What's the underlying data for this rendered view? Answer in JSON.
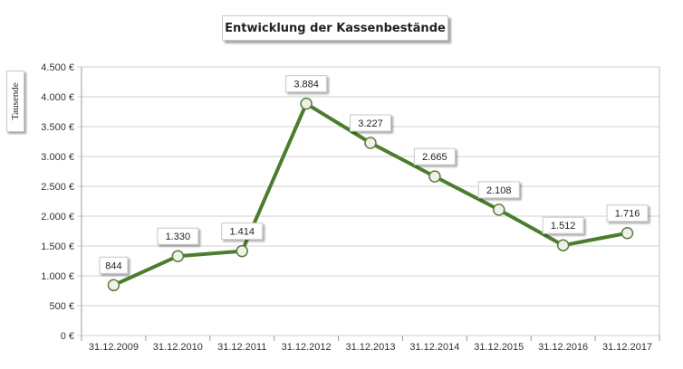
{
  "chart_data": {
    "type": "line",
    "title": "Entwicklung der Kassenbestände",
    "ylabel": "Tausende",
    "xlabel": "",
    "categories": [
      "31.12.2009",
      "31.12.2010",
      "31.12.2011",
      "31.12.2012",
      "31.12.2013",
      "31.12.2014",
      "31.12.2015",
      "31.12.2016",
      "31.12.2017"
    ],
    "values": [
      844,
      1330,
      1414,
      3884,
      3227,
      2665,
      2108,
      1512,
      1716
    ],
    "data_labels": [
      "844",
      "1.330",
      "1.414",
      "3.884",
      "3.227",
      "2.665",
      "2.108",
      "1.512",
      "1.716"
    ],
    "ylim": [
      0,
      4500
    ],
    "yticks": [
      0,
      500,
      1000,
      1500,
      2000,
      2500,
      3000,
      3500,
      4000,
      4500
    ],
    "ytick_labels": [
      "0 €",
      "500 €",
      "1.000 €",
      "1.500 €",
      "2.000 €",
      "2.500 €",
      "3.000 €",
      "3.500 €",
      "4.000 €",
      "4.500 €"
    ],
    "grid": true,
    "legend": "none",
    "line_color": "#4a7d2e",
    "marker_fill": "#eef3e6",
    "grid_color": "#d0d0d0"
  }
}
